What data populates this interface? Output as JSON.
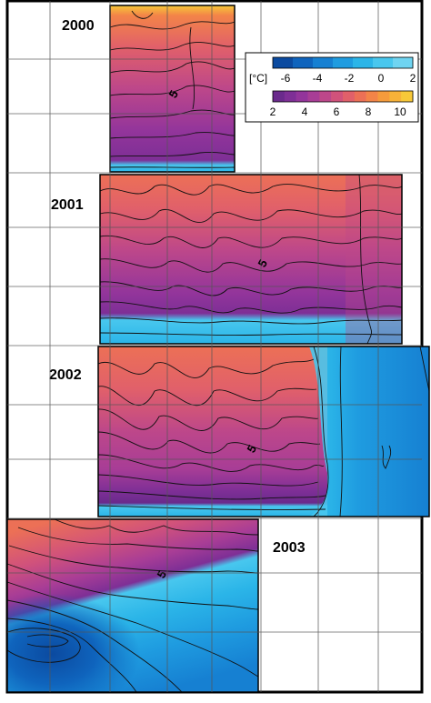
{
  "chart_data": {
    "type": "heatmap",
    "title": "",
    "xlabel": "",
    "ylabel": "",
    "grid": true,
    "legend_position": "top-right",
    "colorbar": {
      "unit": "[°C]",
      "negative_ticks": [
        "-6",
        "-4",
        "-2",
        "0",
        "2"
      ],
      "positive_ticks": [
        "2",
        "4",
        "6",
        "8",
        "10"
      ],
      "negative_colors": [
        "#0b4aa0",
        "#0f64bd",
        "#1680d2",
        "#1f9ce0",
        "#2bb5e8",
        "#48c7ee",
        "#6fd4f1"
      ],
      "positive_colors": [
        "#6a2a8c",
        "#7e2f96",
        "#93359b",
        "#a83d96",
        "#bd478a",
        "#d1527b",
        "#e1606a",
        "#ec7056",
        "#f38448",
        "#f59b3c",
        "#f7b238",
        "#f7c838"
      ]
    },
    "panels": [
      {
        "year": "2000",
        "contour_label": "5"
      },
      {
        "year": "2001",
        "contour_label": "5"
      },
      {
        "year": "2002",
        "contour_label": "5"
      },
      {
        "year": "2003",
        "contour_label": "5"
      }
    ]
  }
}
